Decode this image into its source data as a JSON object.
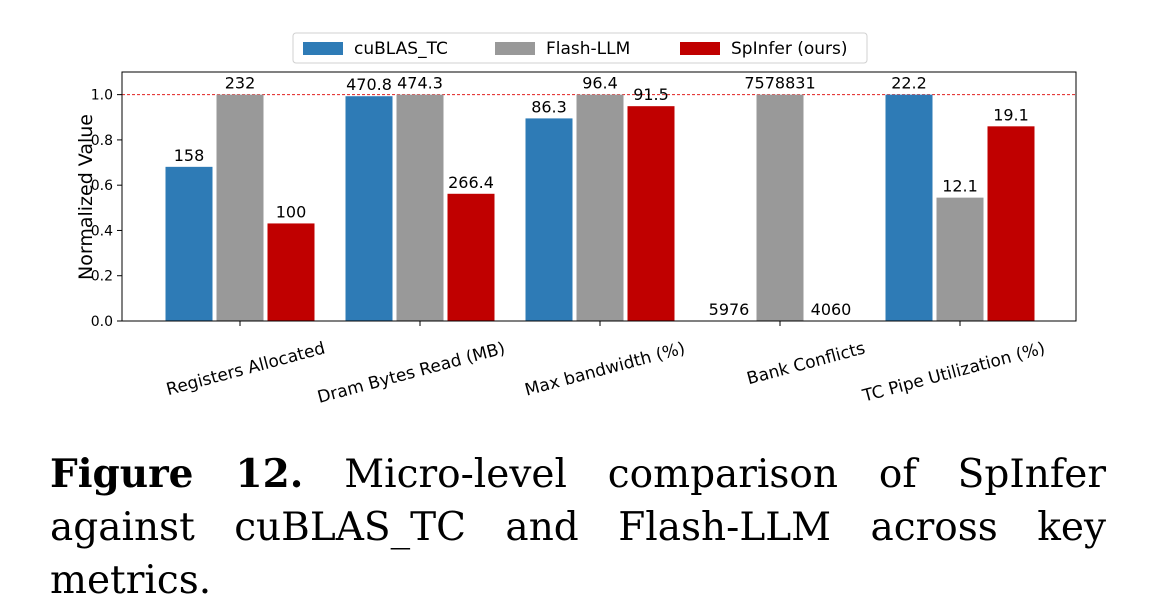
{
  "chart_data": {
    "type": "bar",
    "ylabel": "Normalized Value",
    "ylim": [
      0,
      1.1
    ],
    "yticks": [
      "0.0",
      "0.2",
      "0.4",
      "0.6",
      "0.8",
      "1.0"
    ],
    "categories": [
      "Registers Allocated",
      "Dram Bytes Read (MB)",
      "Max bandwidth (%)",
      "Bank Conflicts",
      "TC Pipe Utilization (%)"
    ],
    "reference_line": 1.0,
    "legend": "top-center",
    "series": [
      {
        "name": "cuBLAS_TC",
        "color": "#2e7bb6",
        "values": [
          0.681,
          0.993,
          0.895,
          0.0,
          1.0
        ],
        "labels": [
          "158",
          "470.8",
          "86.3",
          "5976",
          "22.2"
        ]
      },
      {
        "name": "Flash-LLM",
        "color": "#999999",
        "values": [
          1.0,
          1.0,
          1.0,
          1.0,
          0.545
        ],
        "labels": [
          "232",
          "474.3",
          "96.4",
          "7578831",
          "12.1"
        ]
      },
      {
        "name": "SpInfer (ours)",
        "color": "#c00000",
        "values": [
          0.431,
          0.562,
          0.949,
          0.0,
          0.86
        ],
        "labels": [
          "100",
          "266.4",
          "91.5",
          "4060",
          "19.1"
        ]
      }
    ]
  },
  "caption": {
    "figure_label": "Figure 12.",
    "text": "Micro-level comparison of SpInfer against cuBLAS_TC and Flash-LLM across key metrics."
  }
}
